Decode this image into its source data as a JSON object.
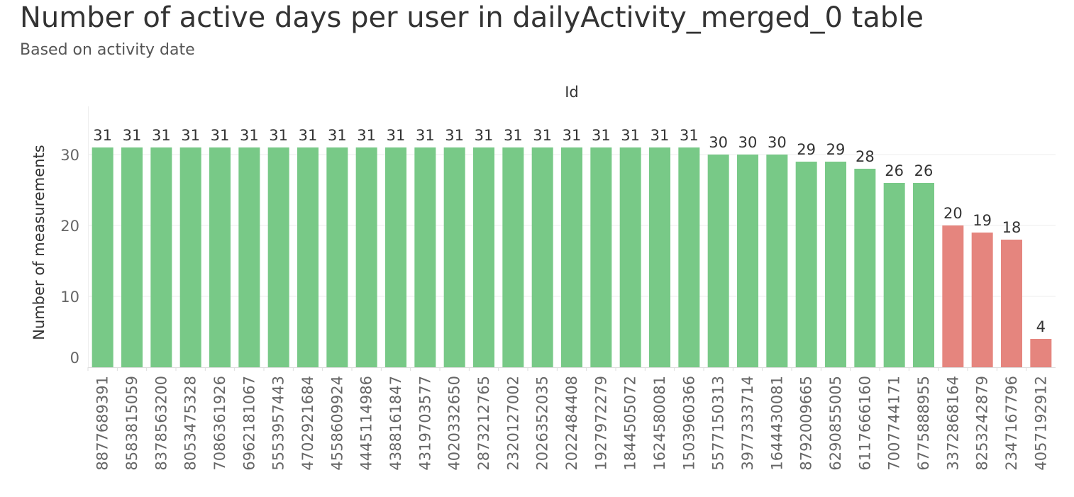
{
  "chart_data": {
    "type": "bar",
    "title": "Number of active days per user in dailyActivity_merged_0 table",
    "subtitle": "Based on activity date",
    "xlabel": "Id",
    "ylabel": "Number of measurements",
    "ylim": [
      0,
      35
    ],
    "yticks": [
      0,
      10,
      20,
      30
    ],
    "grid": true,
    "categories": [
      "8877689391",
      "8583815059",
      "8378563200",
      "8053475328",
      "7086361926",
      "6962181067",
      "5553957443",
      "4702921684",
      "4558609924",
      "4445114986",
      "4388161847",
      "4319703577",
      "4020332650",
      "2873212765",
      "2320127002",
      "2026352035",
      "2022484408",
      "1927972279",
      "1844505072",
      "1624580081",
      "1503960366",
      "5577150313",
      "3977333714",
      "1644430081",
      "8792009665",
      "6290855005",
      "6117666160",
      "7007744171",
      "6775888955",
      "3372868164",
      "8253242879",
      "2347167796",
      "4057192912"
    ],
    "values": [
      31,
      31,
      31,
      31,
      31,
      31,
      31,
      31,
      31,
      31,
      31,
      31,
      31,
      31,
      31,
      31,
      31,
      31,
      31,
      31,
      31,
      30,
      30,
      30,
      29,
      29,
      28,
      26,
      26,
      20,
      19,
      18,
      4
    ],
    "colors": {
      "high": "#78C987",
      "low": "#E5857E"
    },
    "low_threshold": 20
  }
}
